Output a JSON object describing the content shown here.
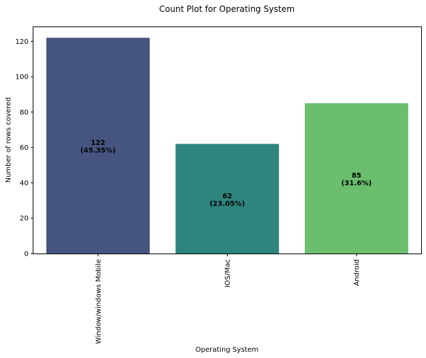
{
  "chart_data": {
    "type": "bar",
    "title": "Count Plot for Operating System",
    "xlabel": "Operating System",
    "ylabel": "Number of rows covered",
    "categories": [
      "Window/windows Mobile",
      "IOS/Mac",
      "Android"
    ],
    "values": [
      122,
      62,
      85
    ],
    "value_labels": [
      "122",
      "62",
      "85"
    ],
    "percent_labels": [
      "(45.35%)",
      "(23.05%)",
      "(31.6%)"
    ],
    "colors": [
      "#46557f",
      "#2e857d",
      "#6abe6e"
    ],
    "ylim": [
      0,
      128
    ],
    "yticks": [
      0,
      20,
      40,
      60,
      80,
      100,
      120
    ],
    "ytick_labels": [
      "0",
      "20",
      "40",
      "60",
      "80",
      "100",
      "120"
    ],
    "grid": false,
    "legend": "none"
  }
}
